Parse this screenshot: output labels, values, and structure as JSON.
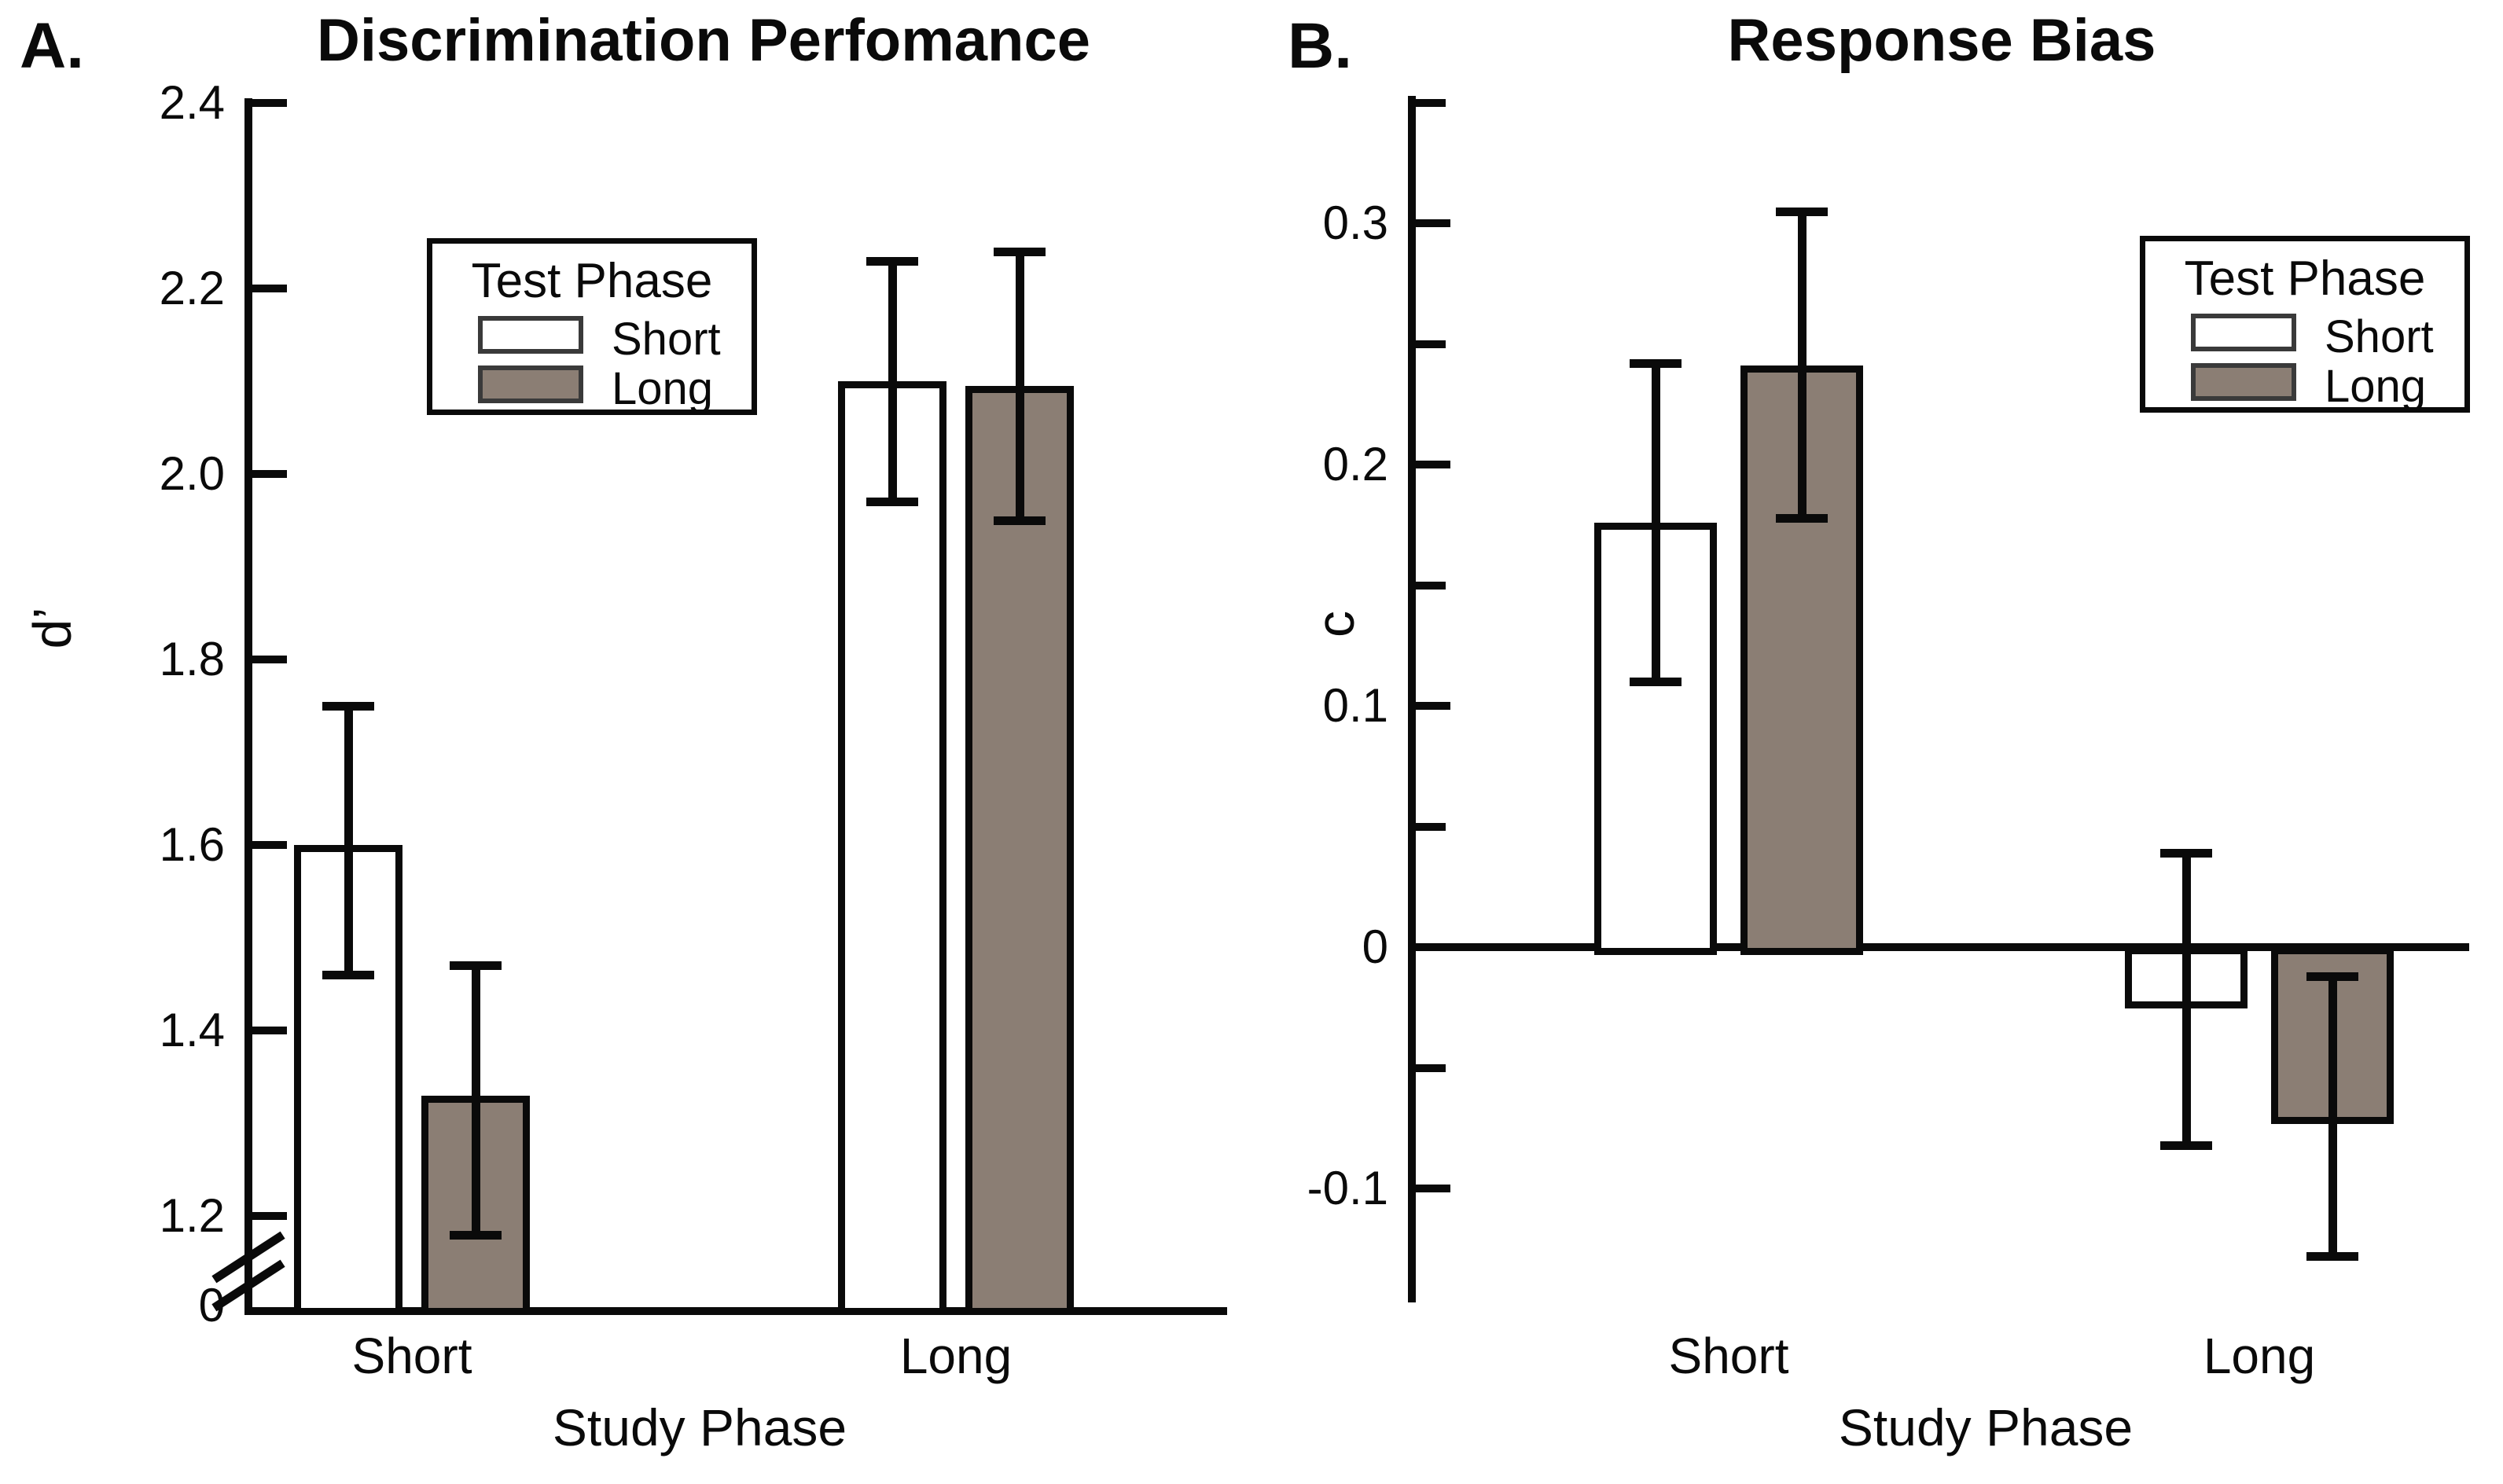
{
  "chart_data": [
    {
      "type": "bar",
      "panel_letter": "A.",
      "title": "Discrimination Perfomance",
      "ylabel": "d’",
      "xlabel": "Study Phase",
      "categories": [
        "Short",
        "Long"
      ],
      "series": [
        {
          "name": "Short",
          "fill": "#ffffff",
          "values": [
            1.6,
            2.1
          ],
          "err_lo": [
            1.46,
            1.97
          ],
          "err_hi": [
            1.75,
            2.23
          ]
        },
        {
          "name": "Long",
          "fill": "#8b7e74",
          "values": [
            1.33,
            2.095
          ],
          "err_lo": [
            1.18,
            1.95
          ],
          "err_hi": [
            1.47,
            2.24
          ]
        }
      ],
      "ylim_linear": [
        1.2,
        2.4
      ],
      "axis_break": true,
      "baseline_label": "0",
      "yticks": [
        {
          "v": 2.4,
          "label": "2.4"
        },
        {
          "v": 2.2,
          "label": "2.2"
        },
        {
          "v": 2.0,
          "label": "2.0"
        },
        {
          "v": 1.8,
          "label": "1.8"
        },
        {
          "v": 1.6,
          "label": "1.6"
        },
        {
          "v": 1.4,
          "label": "1.4"
        },
        {
          "v": 1.2,
          "label": "1.2"
        }
      ],
      "yticks_minor": [],
      "legend": {
        "title": "Test Phase",
        "entries": [
          {
            "label": "Short",
            "fill": "#ffffff"
          },
          {
            "label": "Long",
            "fill": "#8b7e74"
          }
        ]
      }
    },
    {
      "type": "bar",
      "panel_letter": "B.",
      "title": "Response Bias",
      "ylabel": "c",
      "xlabel": "Study Phase",
      "categories": [
        "Short",
        "Long"
      ],
      "series": [
        {
          "name": "Short",
          "fill": "#ffffff",
          "values": [
            0.176,
            -0.022
          ],
          "err_lo": [
            0.11,
            -0.082
          ],
          "err_hi": [
            0.242,
            0.039
          ]
        },
        {
          "name": "Long",
          "fill": "#8b7e74",
          "values": [
            0.241,
            -0.07
          ],
          "err_lo": [
            0.178,
            -0.128
          ],
          "err_hi": [
            0.305,
            -0.012
          ]
        }
      ],
      "ylim": [
        -0.15,
        0.35
      ],
      "yticks": [
        {
          "v": 0.3,
          "label": "0.3"
        },
        {
          "v": 0.2,
          "label": "0.2"
        },
        {
          "v": 0.1,
          "label": "0.1"
        },
        {
          "v": 0.0,
          "label": "0"
        },
        {
          "v": -0.1,
          "label": "-0.1"
        }
      ],
      "yticks_minor": [
        0.35,
        0.25,
        0.15,
        0.05,
        -0.05
      ],
      "legend": {
        "title": "Test Phase",
        "entries": [
          {
            "label": "Short",
            "fill": "#ffffff"
          },
          {
            "label": "Long",
            "fill": "#8b7e74"
          }
        ]
      }
    }
  ],
  "colors": {
    "bar_long_fill": "#8b7e74",
    "bar_short_fill": "#ffffff",
    "line": "#0a0a0a"
  }
}
